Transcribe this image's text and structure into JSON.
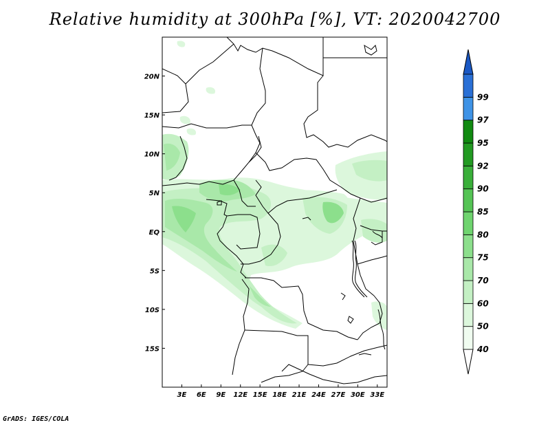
{
  "title": "Relative humidity at 300hPa [%], VT: 2020042700",
  "credit": "GrADS: IGES/COLA",
  "map": {
    "lon_range": [
      0,
      34.5
    ],
    "lat_range": [
      -20,
      25
    ],
    "x_ticks": [
      {
        "value": 3,
        "label": "3E"
      },
      {
        "value": 6,
        "label": "6E"
      },
      {
        "value": 9,
        "label": "9E"
      },
      {
        "value": 12,
        "label": "12E"
      },
      {
        "value": 15,
        "label": "15E"
      },
      {
        "value": 18,
        "label": "18E"
      },
      {
        "value": 21,
        "label": "21E"
      },
      {
        "value": 24,
        "label": "24E"
      },
      {
        "value": 27,
        "label": "27E"
      },
      {
        "value": 30,
        "label": "30E"
      },
      {
        "value": 33,
        "label": "33E"
      }
    ],
    "y_ticks": [
      {
        "value": 20,
        "label": "20N"
      },
      {
        "value": 15,
        "label": "15N"
      },
      {
        "value": 10,
        "label": "10N"
      },
      {
        "value": 5,
        "label": "5N"
      },
      {
        "value": 0,
        "label": "EQ"
      },
      {
        "value": -5,
        "label": "5S"
      },
      {
        "value": -10,
        "label": "10S"
      },
      {
        "value": -15,
        "label": "15S"
      }
    ]
  },
  "colorbar": {
    "levels": [
      {
        "label": "40",
        "color": "#f0fcf0"
      },
      {
        "label": "50",
        "color": "#dcf7dc"
      },
      {
        "label": "60",
        "color": "#c4f0c4"
      },
      {
        "label": "70",
        "color": "#a9e8a9"
      },
      {
        "label": "75",
        "color": "#8cdf8c"
      },
      {
        "label": "80",
        "color": "#6fd46f"
      },
      {
        "label": "85",
        "color": "#55c455"
      },
      {
        "label": "90",
        "color": "#3aaf3a"
      },
      {
        "label": "92",
        "color": "#229a22"
      },
      {
        "label": "95",
        "color": "#118a11"
      },
      {
        "label": "97",
        "color": "#3f93e6"
      },
      {
        "label": "99",
        "color": "#2a70d6"
      }
    ],
    "top_arrow_color": "#1a58c4",
    "bottom_arrow_color": "#ffffff"
  }
}
